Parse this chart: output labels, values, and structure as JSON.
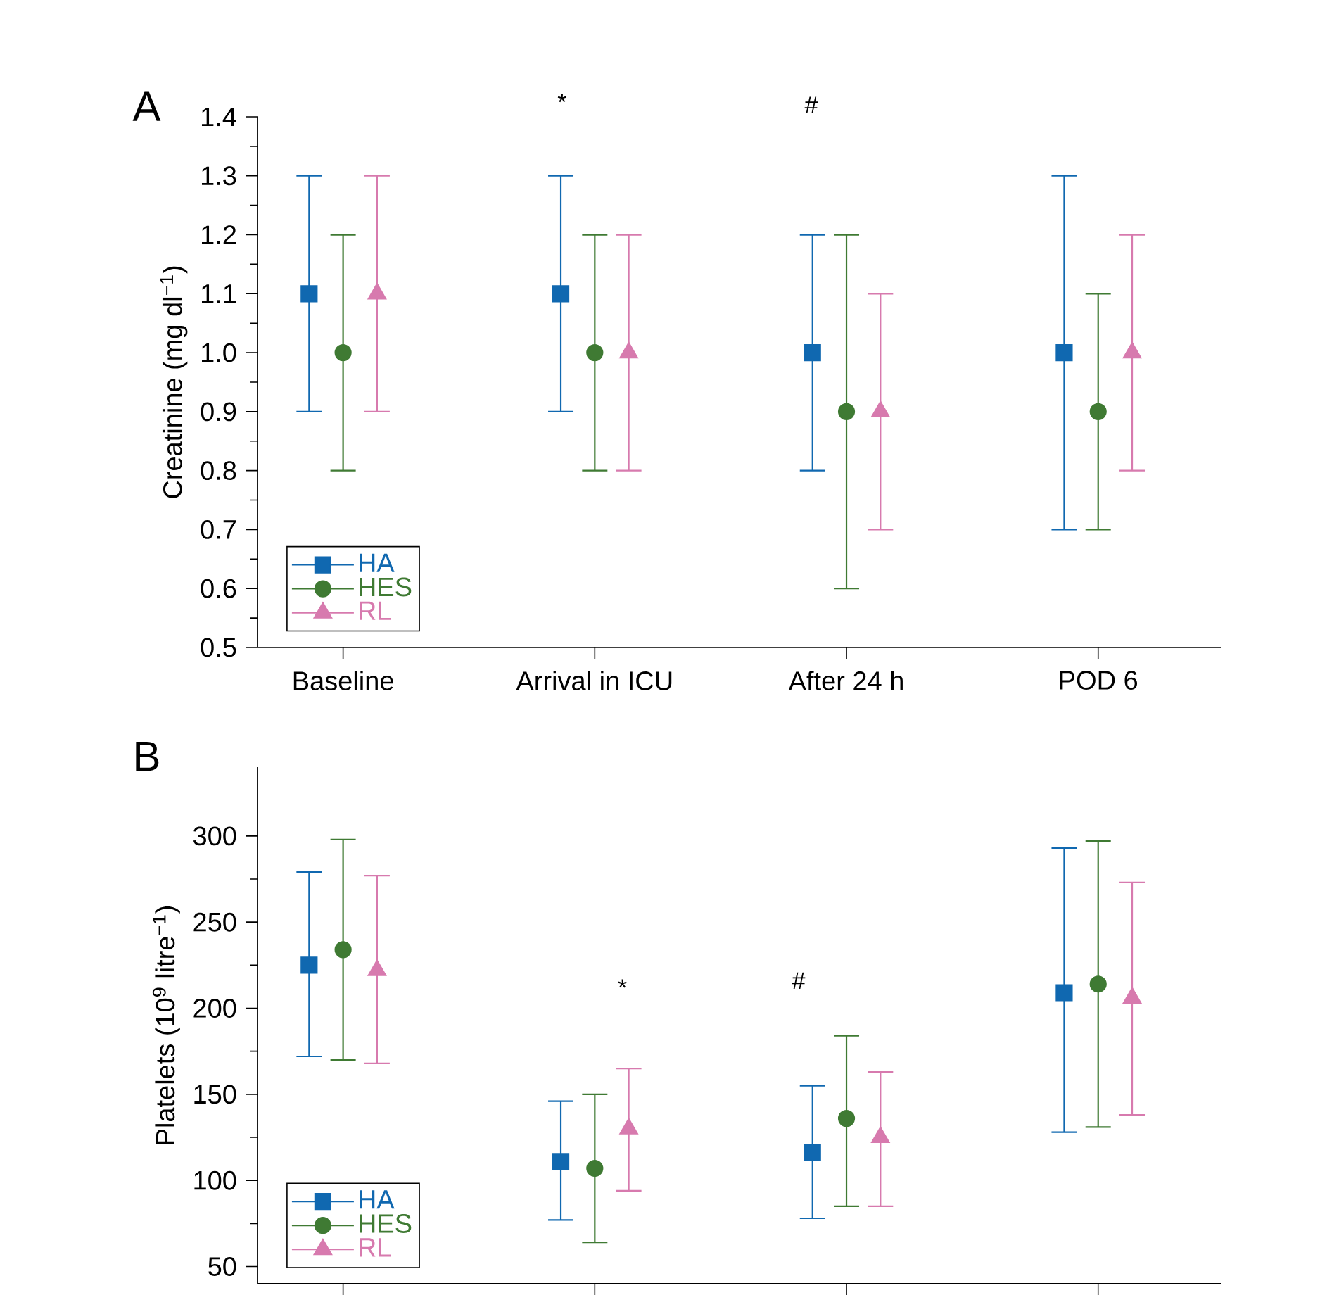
{
  "chart_data": [
    {
      "type": "scatter",
      "title": "A",
      "ylabel": "Creatinine (mg dl$^{−1}$)",
      "categories": [
        "Baseline",
        "Arrival in ICU",
        "After 24 h",
        "POD 6"
      ],
      "ylim": [
        0.5,
        1.4
      ],
      "yticks": [
        0.5,
        0.6,
        0.7,
        0.8,
        0.9,
        {
          "value": 1.0,
          "label": "1.0"
        },
        1.1,
        1.2,
        1.3,
        1.4
      ],
      "legend": "bottom left",
      "annotations": [
        "*",
        "#"
      ],
      "series": [
        {
          "name": "HA",
          "color": "#1068b0",
          "marker": "square",
          "values": [
            1.1,
            1.1,
            1.0,
            1.0
          ],
          "errors": [
            [
              0.9,
              1.3
            ],
            [
              0.9,
              1.3
            ],
            [
              0.8,
              1.2
            ],
            [
              0.7,
              1.3
            ]
          ]
        },
        {
          "name": "HES",
          "color": "#3f7a33",
          "marker": "circle",
          "values": [
            1.0,
            1.0,
            0.9,
            0.9
          ],
          "errors": [
            [
              0.8,
              1.2
            ],
            [
              0.8,
              1.2
            ],
            [
              0.6,
              1.2
            ],
            [
              0.7,
              1.1
            ]
          ]
        },
        {
          "name": "RL",
          "color": "#d77aae",
          "marker": "triangle",
          "values": [
            1.1,
            1.0,
            0.9,
            1.0
          ],
          "errors": [
            [
              0.9,
              1.3
            ],
            [
              0.8,
              1.2
            ],
            [
              0.7,
              1.1
            ],
            [
              0.8,
              1.2
            ]
          ]
        }
      ]
    },
    {
      "type": "scatter",
      "title": "B",
      "ylabel": "Platelets (10$^{9}$ litre$^{−1}$)",
      "categories": [
        null,
        null,
        null,
        null
      ],
      "ylim": [
        40,
        340
      ],
      "yticks": [
        50,
        100,
        150,
        200,
        250,
        300
      ],
      "legend": "bottom left",
      "tick_labels": "y",
      "annotations": [
        "*",
        "#"
      ],
      "series": [
        {
          "name": "HA",
          "color": "#1068b0",
          "marker": "square",
          "values": [
            225,
            111,
            116,
            209
          ],
          "errors": [
            [
              172,
              279
            ],
            [
              77,
              146
            ],
            [
              78,
              155
            ],
            [
              128,
              293
            ]
          ]
        },
        {
          "name": "HES",
          "color": "#3f7a33",
          "marker": "circle",
          "values": [
            234,
            107,
            136,
            214
          ],
          "errors": [
            [
              170,
              298
            ],
            [
              64,
              150
            ],
            [
              85,
              184
            ],
            [
              131,
              297
            ]
          ]
        },
        {
          "name": "RL",
          "color": "#d77aae",
          "marker": "triangle",
          "values": [
            222,
            130,
            125,
            206
          ],
          "errors": [
            [
              168,
              277
            ],
            [
              94,
              165
            ],
            [
              85,
              163
            ],
            [
              138,
              273
            ]
          ]
        }
      ]
    }
  ]
}
